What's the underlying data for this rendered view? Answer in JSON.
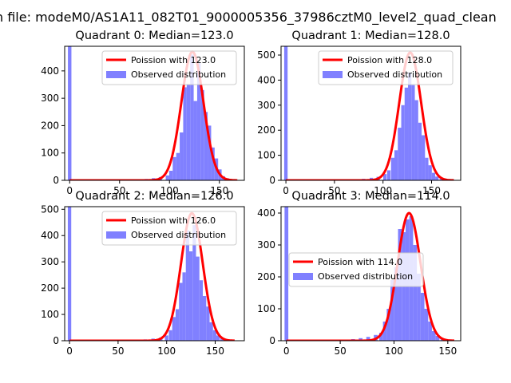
{
  "figure": {
    "suptitle": "n file: modeM0/AS1A11_082T01_9000005356_37986cztM0_level2_quad_clean"
  },
  "colors": {
    "line": "#ff0000",
    "bars": "#8080ff"
  },
  "chart_data": [
    {
      "type": "bar",
      "title": "Quadrant 0: Median=123.0",
      "xlim": [
        -5,
        175
      ],
      "ylim": [
        0,
        490
      ],
      "xticks": [
        0,
        50,
        100,
        150
      ],
      "yticks": [
        0,
        100,
        200,
        300,
        400
      ],
      "grid": false,
      "legend_placement": "top-right",
      "bin_width": 3.5,
      "bars": [
        {
          "x": 0,
          "y": 490
        },
        {
          "x": 70,
          "y": 3
        },
        {
          "x": 77,
          "y": 5
        },
        {
          "x": 84,
          "y": 8
        },
        {
          "x": 91,
          "y": 12
        },
        {
          "x": 98,
          "y": 18
        },
        {
          "x": 101.5,
          "y": 35
        },
        {
          "x": 105,
          "y": 85
        },
        {
          "x": 108.5,
          "y": 100
        },
        {
          "x": 112,
          "y": 175
        },
        {
          "x": 115.5,
          "y": 340
        },
        {
          "x": 119,
          "y": 350
        },
        {
          "x": 122.5,
          "y": 460
        },
        {
          "x": 126,
          "y": 290
        },
        {
          "x": 129.5,
          "y": 430
        },
        {
          "x": 133,
          "y": 330
        },
        {
          "x": 136.5,
          "y": 250
        },
        {
          "x": 140,
          "y": 200
        },
        {
          "x": 143.5,
          "y": 120
        },
        {
          "x": 147,
          "y": 80
        },
        {
          "x": 150.5,
          "y": 40
        },
        {
          "x": 154,
          "y": 15
        },
        {
          "x": 157.5,
          "y": 8
        },
        {
          "x": 164.5,
          "y": 4
        }
      ],
      "series": [
        {
          "name": "Poission with 123.0",
          "kind": "line",
          "mean": 123.0,
          "peak": 470,
          "sigma": 11.1,
          "x_range": [
            0,
            168
          ]
        },
        {
          "name": "Observed distribution",
          "kind": "bar"
        }
      ]
    },
    {
      "type": "bar",
      "title": "Quadrant 1: Median=128.0",
      "xlim": [
        -5,
        180
      ],
      "ylim": [
        0,
        535
      ],
      "xticks": [
        0,
        50,
        100,
        150
      ],
      "yticks": [
        0,
        100,
        200,
        300,
        400,
        500
      ],
      "grid": false,
      "legend_placement": "top-right",
      "bin_width": 3.5,
      "bars": [
        {
          "x": 0,
          "y": 535
        },
        {
          "x": 72,
          "y": 3
        },
        {
          "x": 80,
          "y": 6
        },
        {
          "x": 88,
          "y": 10
        },
        {
          "x": 95,
          "y": 14
        },
        {
          "x": 102,
          "y": 25
        },
        {
          "x": 106,
          "y": 40
        },
        {
          "x": 110,
          "y": 90
        },
        {
          "x": 113.5,
          "y": 120
        },
        {
          "x": 117,
          "y": 210
        },
        {
          "x": 120.5,
          "y": 300
        },
        {
          "x": 124,
          "y": 370
        },
        {
          "x": 127.5,
          "y": 430
        },
        {
          "x": 131,
          "y": 380
        },
        {
          "x": 134.5,
          "y": 320
        },
        {
          "x": 138,
          "y": 230
        },
        {
          "x": 141.5,
          "y": 180
        },
        {
          "x": 145,
          "y": 90
        },
        {
          "x": 148.5,
          "y": 60
        },
        {
          "x": 152,
          "y": 30
        },
        {
          "x": 155.5,
          "y": 15
        },
        {
          "x": 160,
          "y": 6
        }
      ],
      "series": [
        {
          "name": "Poission with 128.0",
          "kind": "line",
          "mean": 128.0,
          "peak": 510,
          "sigma": 11.3,
          "x_range": [
            0,
            173
          ]
        },
        {
          "name": "Observed distribution",
          "kind": "bar"
        }
      ]
    },
    {
      "type": "bar",
      "title": "Quadrant 2: Median=126.0",
      "xlim": [
        -5,
        180
      ],
      "ylim": [
        0,
        510
      ],
      "xticks": [
        0,
        50,
        100,
        150
      ],
      "yticks": [
        0,
        100,
        200,
        300,
        400,
        500
      ],
      "grid": false,
      "legend_placement": "top-right",
      "bin_width": 3.5,
      "bars": [
        {
          "x": 0,
          "y": 510
        },
        {
          "x": 70,
          "y": 3
        },
        {
          "x": 78,
          "y": 5
        },
        {
          "x": 86,
          "y": 8
        },
        {
          "x": 94,
          "y": 12
        },
        {
          "x": 100,
          "y": 20
        },
        {
          "x": 104,
          "y": 40
        },
        {
          "x": 107.5,
          "y": 90
        },
        {
          "x": 111,
          "y": 120
        },
        {
          "x": 114.5,
          "y": 220
        },
        {
          "x": 118,
          "y": 260
        },
        {
          "x": 121.5,
          "y": 420
        },
        {
          "x": 125,
          "y": 340
        },
        {
          "x": 128.5,
          "y": 440
        },
        {
          "x": 132,
          "y": 320
        },
        {
          "x": 135.5,
          "y": 230
        },
        {
          "x": 139,
          "y": 170
        },
        {
          "x": 142.5,
          "y": 130
        },
        {
          "x": 146,
          "y": 70
        },
        {
          "x": 149.5,
          "y": 40
        },
        {
          "x": 153,
          "y": 20
        },
        {
          "x": 157,
          "y": 8
        }
      ],
      "series": [
        {
          "name": "Poission with 126.0",
          "kind": "line",
          "mean": 126.0,
          "peak": 485,
          "sigma": 11.2,
          "x_range": [
            0,
            170
          ]
        },
        {
          "name": "Observed distribution",
          "kind": "bar"
        }
      ]
    },
    {
      "type": "bar",
      "title": "Quadrant 3: Median=114.0",
      "xlim": [
        -5,
        162
      ],
      "ylim": [
        0,
        420
      ],
      "xticks": [
        0,
        50,
        100,
        150
      ],
      "yticks": [
        0,
        100,
        200,
        300,
        400
      ],
      "grid": false,
      "legend_placement": "center-left",
      "bin_width": 3.5,
      "bars": [
        {
          "x": 0,
          "y": 420
        },
        {
          "x": 55,
          "y": 3
        },
        {
          "x": 62,
          "y": 5
        },
        {
          "x": 69,
          "y": 8
        },
        {
          "x": 76,
          "y": 12
        },
        {
          "x": 83,
          "y": 18
        },
        {
          "x": 88,
          "y": 25
        },
        {
          "x": 91.5,
          "y": 60
        },
        {
          "x": 95,
          "y": 100
        },
        {
          "x": 98.5,
          "y": 190
        },
        {
          "x": 102,
          "y": 230
        },
        {
          "x": 105.5,
          "y": 350
        },
        {
          "x": 109,
          "y": 340
        },
        {
          "x": 112.5,
          "y": 380
        },
        {
          "x": 116,
          "y": 390
        },
        {
          "x": 119.5,
          "y": 300
        },
        {
          "x": 123,
          "y": 210
        },
        {
          "x": 126.5,
          "y": 150
        },
        {
          "x": 130,
          "y": 100
        },
        {
          "x": 133.5,
          "y": 60
        },
        {
          "x": 137,
          "y": 30
        },
        {
          "x": 140.5,
          "y": 15
        },
        {
          "x": 145,
          "y": 6
        }
      ],
      "series": [
        {
          "name": "Poission with 114.0",
          "kind": "line",
          "mean": 114.0,
          "peak": 400,
          "sigma": 10.7,
          "x_range": [
            0,
            156
          ]
        },
        {
          "name": "Observed distribution",
          "kind": "bar"
        }
      ]
    }
  ]
}
